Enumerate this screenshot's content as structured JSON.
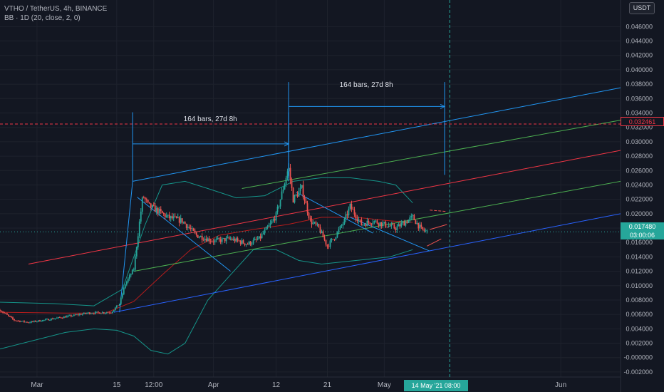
{
  "header": {
    "symbol_line": "VTHO / TetherUS, 4h, BINANCE",
    "indicator_line": "BB · 1D (20, close, 2, 0)"
  },
  "currency_label": "USDT",
  "price_level": {
    "label": "0.032461",
    "value": 0.032461,
    "color": "#f23645"
  },
  "last_price": {
    "price": "0.017480",
    "countdown": "03:00:06",
    "value": 0.01748
  },
  "time_cursor": {
    "label": "14 May '21   08:00",
    "x": 72.5
  },
  "measurements": [
    {
      "label": "164 bars, 27d 8h",
      "x1": 16.8,
      "x2": 44.2,
      "y_top": 0.0341,
      "y_bottom": 0.0245,
      "y_arrow": 0.0297
    },
    {
      "label": "164 bars, 27d 8h",
      "x1": 44.2,
      "x2": 71.6,
      "y_top": 0.0383,
      "y_bottom": 0.0254,
      "y_arrow": 0.0349
    }
  ],
  "colors": {
    "background": "#131722",
    "grid": "#1e222d",
    "axis_text": "#b2b5be",
    "up": "#26a69a",
    "down": "#ef5350",
    "bb_basis": "#b71c1c",
    "bb_band": "#159489",
    "channel_blue": "#2962ff",
    "channel_green": "#4caf50",
    "channel_red": "#f23645",
    "tool_blue": "#2196f3"
  },
  "chart_data": {
    "type": "candlestick",
    "x_unit": "days since 1 Mar 2021",
    "xlim": [
      -6.5,
      102.5
    ],
    "ylim": [
      -0.0027,
      0.0497
    ],
    "y_ticks": [
      "0.046000",
      "0.044000",
      "0.042000",
      "0.040000",
      "0.038000",
      "0.036000",
      "0.034000",
      "0.032000",
      "0.030000",
      "0.028000",
      "0.026000",
      "0.024000",
      "0.022000",
      "0.020000",
      "0.018000",
      "0.016000",
      "0.014000",
      "0.012000",
      "0.010000",
      "0.008000",
      "0.006000",
      "0.004000",
      "0.002000",
      "-0.000000",
      "-0.002000"
    ],
    "y_tick_values": [
      0.046,
      0.044,
      0.042,
      0.04,
      0.038,
      0.036,
      0.034,
      0.032,
      0.03,
      0.028,
      0.026,
      0.024,
      0.022,
      0.02,
      0.018,
      0.016,
      0.014,
      0.012,
      0.01,
      0.008,
      0.006,
      0.004,
      0.002,
      0,
      -0.002
    ],
    "x_ticks": [
      {
        "label": "Mar",
        "x": 0
      },
      {
        "label": "15",
        "x": 14
      },
      {
        "label": "12:00",
        "x": 20.5
      },
      {
        "label": "Apr",
        "x": 31
      },
      {
        "label": "12",
        "x": 42
      },
      {
        "label": "21",
        "x": 51
      },
      {
        "label": "May",
        "x": 61
      },
      {
        "label": "Jun",
        "x": 92
      },
      {
        "label": "14",
        "x": 105
      }
    ],
    "price_anchors": [
      [
        -6.5,
        0.0066
      ],
      [
        -4,
        0.0052
      ],
      [
        -1.5,
        0.0049
      ],
      [
        2,
        0.0053
      ],
      [
        6,
        0.0058
      ],
      [
        9,
        0.0062
      ],
      [
        13,
        0.0063
      ],
      [
        14.5,
        0.0075
      ],
      [
        15.5,
        0.0102
      ],
      [
        17,
        0.0123
      ],
      [
        18,
        0.0188
      ],
      [
        18.6,
        0.0225
      ],
      [
        19.6,
        0.0211
      ],
      [
        21,
        0.0205
      ],
      [
        23,
        0.0195
      ],
      [
        25.5,
        0.019
      ],
      [
        28,
        0.017
      ],
      [
        31,
        0.0162
      ],
      [
        34,
        0.0165
      ],
      [
        37,
        0.0158
      ],
      [
        39,
        0.0165
      ],
      [
        41,
        0.0185
      ],
      [
        42,
        0.0198
      ],
      [
        43,
        0.0228
      ],
      [
        44.2,
        0.0265
      ],
      [
        45,
        0.022
      ],
      [
        46.5,
        0.0235
      ],
      [
        48,
        0.019
      ],
      [
        49.5,
        0.018
      ],
      [
        51,
        0.0155
      ],
      [
        52.5,
        0.017
      ],
      [
        54,
        0.019
      ],
      [
        55,
        0.021
      ],
      [
        57,
        0.0185
      ],
      [
        59,
        0.019
      ],
      [
        61,
        0.0185
      ],
      [
        63,
        0.018
      ],
      [
        65,
        0.019
      ],
      [
        66,
        0.0195
      ],
      [
        67.5,
        0.0178
      ],
      [
        68.5,
        0.0175
      ]
    ],
    "bollinger": {
      "upper": [
        [
          -6.5,
          0.0077
        ],
        [
          3,
          0.0075
        ],
        [
          10,
          0.0072
        ],
        [
          15,
          0.0095
        ],
        [
          19,
          0.0185
        ],
        [
          22,
          0.024
        ],
        [
          26,
          0.0245
        ],
        [
          30,
          0.0235
        ],
        [
          35,
          0.0222
        ],
        [
          40,
          0.0225
        ],
        [
          45,
          0.0245
        ],
        [
          50,
          0.025
        ],
        [
          55,
          0.025
        ],
        [
          60,
          0.0245
        ],
        [
          63,
          0.024
        ],
        [
          66,
          0.0215
        ]
      ],
      "basis": [
        [
          -6.5,
          0.0063
        ],
        [
          5,
          0.0062
        ],
        [
          12,
          0.0062
        ],
        [
          17,
          0.0078
        ],
        [
          22,
          0.0115
        ],
        [
          27,
          0.015
        ],
        [
          32,
          0.017
        ],
        [
          38,
          0.0178
        ],
        [
          44,
          0.0185
        ],
        [
          50,
          0.0195
        ],
        [
          56,
          0.0195
        ],
        [
          62,
          0.019
        ],
        [
          66,
          0.0188
        ]
      ],
      "lower": [
        [
          -6.5,
          0.0012
        ],
        [
          5,
          0.0035
        ],
        [
          10,
          0.004
        ],
        [
          14,
          0.0038
        ],
        [
          17,
          0.003
        ],
        [
          20,
          0.001
        ],
        [
          23,
          0.0005
        ],
        [
          26,
          0.002
        ],
        [
          30,
          0.008
        ],
        [
          34,
          0.0115
        ],
        [
          38,
          0.015
        ],
        [
          42,
          0.015
        ],
        [
          46,
          0.0135
        ],
        [
          50,
          0.013
        ],
        [
          56,
          0.0135
        ],
        [
          62,
          0.014
        ],
        [
          66,
          0.015
        ]
      ],
      "basis_forecast": [
        [
          69,
          0.0178
        ],
        [
          72,
          0.0185
        ]
      ],
      "upper_forecast": [
        [
          69,
          0.0205
        ],
        [
          72,
          0.0203
        ]
      ],
      "lower_forecast": [
        [
          68.5,
          0.0155
        ],
        [
          71,
          0.0165
        ]
      ]
    },
    "channel_lines": [
      {
        "color": "#2962ff",
        "x1": 13.5,
        "y1": 0.0063,
        "x2": 102.5,
        "y2": 0.02
      },
      {
        "color": "#4caf50",
        "x1": 17,
        "y1": 0.012,
        "x2": 102.5,
        "y2": 0.0245
      },
      {
        "color": "#f23645",
        "x1": -1.5,
        "y1": 0.013,
        "x2": 102.5,
        "y2": 0.0288
      },
      {
        "color": "#4caf50",
        "x1": 36,
        "y1": 0.0235,
        "x2": 102.5,
        "y2": 0.033
      },
      {
        "color": "#2196f3",
        "x1": 16.8,
        "y1": 0.0245,
        "x2": 102.5,
        "y2": 0.0375
      },
      {
        "color": "#2196f3",
        "x1": 14.5,
        "y1": 0.0063,
        "x2": 16.8,
        "y2": 0.0245
      },
      {
        "color": "#2196f3",
        "x1": 17.6,
        "y1": 0.0223,
        "x2": 34,
        "y2": 0.012
      },
      {
        "color": "#2196f3",
        "x1": 45.5,
        "y1": 0.023,
        "x2": 59,
        "y2": 0.0173
      },
      {
        "color": "#2196f3",
        "x1": 55,
        "y1": 0.0195,
        "x2": 69,
        "y2": 0.0148
      }
    ]
  }
}
